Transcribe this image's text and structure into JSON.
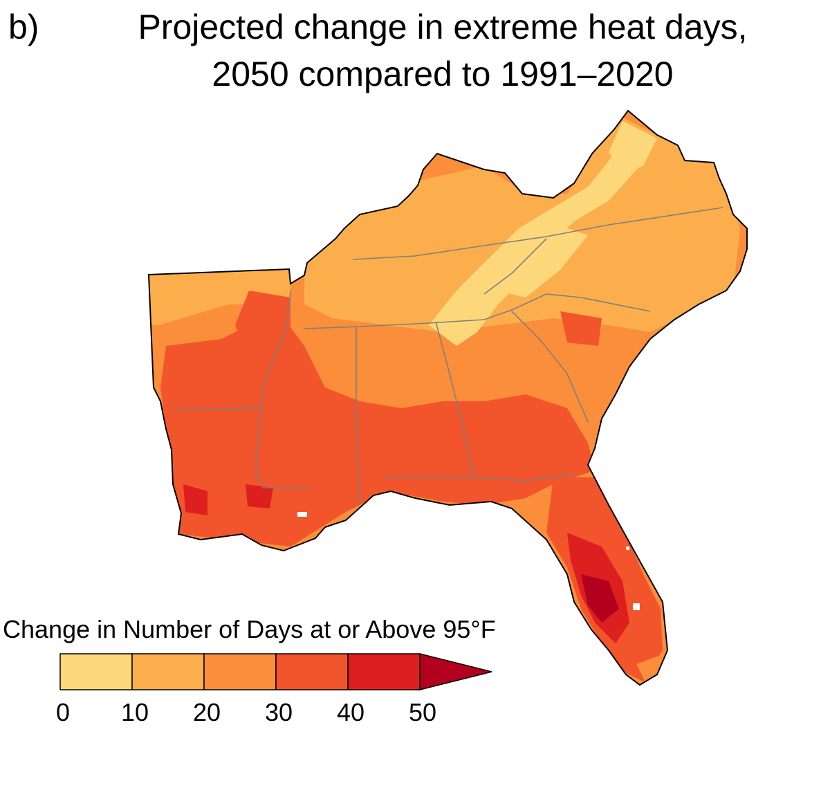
{
  "panel_label": "b)",
  "title_line1": "Projected change in extreme heat days,",
  "title_line2": "2050 compared to 1991–2020",
  "legend": {
    "title": "Change in Number of Days at or Above 95°F",
    "ticks": [
      "0",
      "10",
      "20",
      "30",
      "40",
      "50"
    ],
    "bins": [
      {
        "range": "0–10",
        "color": "#fdd87b"
      },
      {
        "range": "10–20",
        "color": "#fcae4d"
      },
      {
        "range": "20–30",
        "color": "#fb8e3b"
      },
      {
        "range": "30–40",
        "color": "#f2552c"
      },
      {
        "range": "40–50",
        "color": "#de1f1f"
      },
      {
        "range": ">50",
        "color": "#b3001f"
      }
    ]
  },
  "colors": {
    "outline": "#000000",
    "state_border": "#7f7f7f"
  }
}
